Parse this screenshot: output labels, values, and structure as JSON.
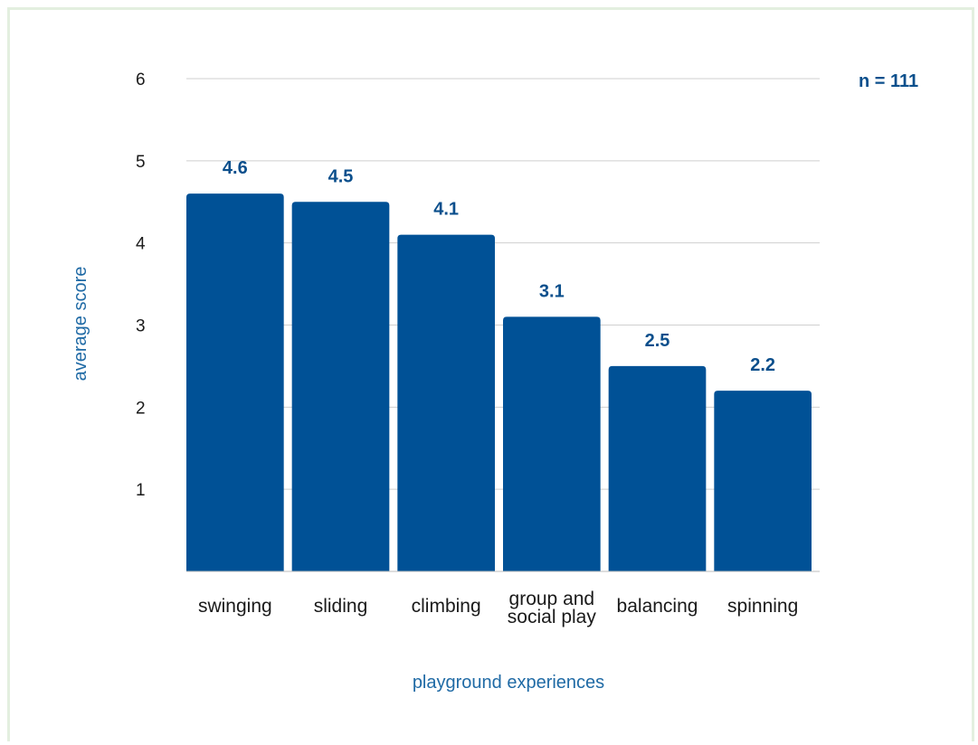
{
  "chart_data": {
    "type": "bar",
    "categories": [
      "swinging",
      "sliding",
      "climbing",
      "group and social play",
      "balancing",
      "spinning"
    ],
    "category_lines": [
      [
        "swinging"
      ],
      [
        "sliding"
      ],
      [
        "climbing"
      ],
      [
        "group and",
        "social play"
      ],
      [
        "balancing"
      ],
      [
        "spinning"
      ]
    ],
    "values": [
      4.6,
      4.5,
      4.1,
      3.1,
      2.5,
      2.2
    ],
    "value_labels": [
      "4.6",
      "4.5",
      "4.1",
      "3.1",
      "2.5",
      "2.2"
    ],
    "xlabel": "playground experiences",
    "ylabel": "average score",
    "yticks": [
      1,
      2,
      3,
      4,
      5,
      6
    ],
    "ylim": [
      0,
      6
    ],
    "grid": true,
    "annotation": "n = 111",
    "colors": {
      "bar": "#005196",
      "grid": "#cfcfcf",
      "axis_title": "#1f6aa5",
      "value_label": "#0b4f8c"
    }
  }
}
